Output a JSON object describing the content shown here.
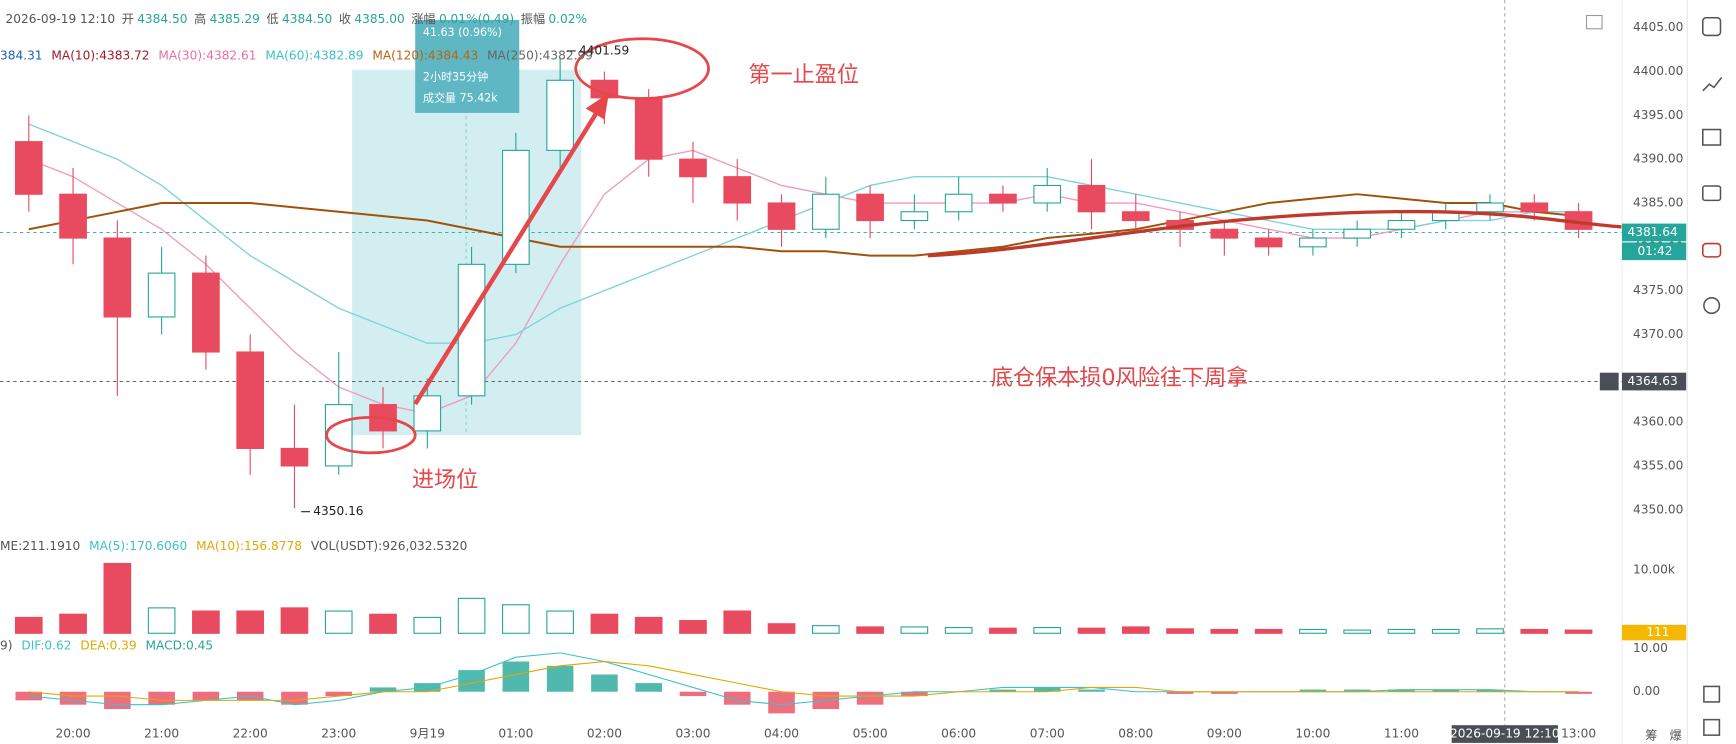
{
  "header": {
    "datetime": "2026-09-19 12:10",
    "fields": [
      {
        "label": "开",
        "value": "4384.50"
      },
      {
        "label": "高",
        "value": "4385.29"
      },
      {
        "label": "低",
        "value": "4384.50"
      },
      {
        "label": "收",
        "value": "4385.00"
      },
      {
        "label": "涨幅",
        "value": "0.01%(0.49)"
      },
      {
        "label": "振幅",
        "value": "0.02%"
      }
    ]
  },
  "chart_data": {
    "type": "candlestick",
    "x": [
      0.5,
      1,
      1.5,
      2,
      2.5,
      3,
      3.5,
      4,
      4.5,
      5,
      5.5,
      6,
      6.5,
      7,
      7.5,
      8,
      8.5,
      9,
      9.5,
      10,
      10.5,
      11,
      11.5,
      12,
      12.5,
      13,
      13.5,
      14,
      14.5,
      15,
      15.5,
      16,
      16.5,
      17,
      17.5,
      18
    ],
    "open": [
      4392,
      4386,
      4381,
      4372,
      4377,
      4368,
      4357,
      4355,
      4362,
      4359,
      4363,
      4378,
      4391,
      4399,
      4397,
      4390,
      4388,
      4385,
      4382,
      4386,
      4383,
      4384,
      4386,
      4385,
      4387,
      4384,
      4383,
      4382,
      4381,
      4380,
      4381,
      4382,
      4383,
      4384,
      4385,
      4384
    ],
    "high": [
      4395,
      4389,
      4383,
      4380,
      4379,
      4370,
      4362,
      4368,
      4364,
      4365,
      4380,
      4393,
      4401.59,
      4400,
      4398,
      4392,
      4390,
      4386,
      4388,
      4387,
      4386,
      4388,
      4387,
      4389,
      4390,
      4386,
      4384,
      4383,
      4382,
      4382,
      4383,
      4384,
      4385,
      4386,
      4386,
      4385
    ],
    "low": [
      4384,
      4378,
      4363,
      4370,
      4366,
      4354,
      4350.16,
      4354,
      4357,
      4357,
      4362,
      4377,
      4389,
      4394,
      4388,
      4385,
      4383,
      4380,
      4381,
      4381,
      4382,
      4383,
      4384,
      4384,
      4382,
      4382,
      4380,
      4379,
      4379,
      4379,
      4380,
      4381,
      4382,
      4383,
      4383,
      4381
    ],
    "close": [
      4386,
      4381,
      4372,
      4377,
      4368,
      4357,
      4355,
      4362,
      4359,
      4363,
      4378,
      4391,
      4399,
      4397,
      4390,
      4388,
      4385,
      4382,
      4386,
      4383,
      4384,
      4386,
      4385,
      4387,
      4384,
      4383,
      4382,
      4381,
      4380,
      4381,
      4382,
      4383,
      4384,
      4385,
      4384,
      4382
    ],
    "up_color": "#26a69a",
    "down_color": "#e84a5f",
    "xlim": [
      0.175,
      18.49
    ],
    "xticks": [
      {
        "value": 1,
        "label": "20:00"
      },
      {
        "value": 2,
        "label": "21:00"
      },
      {
        "value": 3,
        "label": "22:00"
      },
      {
        "value": 4,
        "label": "23:00"
      },
      {
        "value": 5,
        "label": "9月19"
      },
      {
        "value": 6,
        "label": "01:00"
      },
      {
        "value": 7,
        "label": "02:00"
      },
      {
        "value": 8,
        "label": "03:00"
      },
      {
        "value": 9,
        "label": "04:00"
      },
      {
        "value": 10,
        "label": "05:00"
      },
      {
        "value": 11,
        "label": "06:00"
      },
      {
        "value": 12,
        "label": "07:00"
      },
      {
        "value": 13,
        "label": "08:00"
      },
      {
        "value": 14,
        "label": "09:00"
      },
      {
        "value": 15,
        "label": "10:00"
      },
      {
        "value": 16,
        "label": "11:00"
      },
      {
        "value": 18,
        "label": "13:00"
      }
    ],
    "ylim": [
      4347.53,
      4408.16
    ],
    "yticks": [
      {
        "value": 4350,
        "label": "4350.00"
      },
      {
        "value": 4355,
        "label": "4355.00"
      },
      {
        "value": 4360,
        "label": "4360.00"
      },
      {
        "value": 4365,
        "label": "4365.00"
      },
      {
        "value": 4370,
        "label": "4370.00"
      },
      {
        "value": 4375,
        "label": "4375.00"
      },
      {
        "value": 4380,
        "label": "4380.00"
      },
      {
        "value": 4385,
        "label": "4385.00"
      },
      {
        "value": 4390,
        "label": "4390.00"
      },
      {
        "value": 4395,
        "label": "4395.00"
      },
      {
        "value": 4400,
        "label": "4400.00"
      },
      {
        "value": 4405,
        "label": "4405.00"
      }
    ],
    "ma_legend": [
      {
        "text": "384.31",
        "color": "#1e5fb4"
      },
      {
        "text": "MA(10):4383.72",
        "color": "#a01a2a"
      },
      {
        "text": "MA(30):4382.61",
        "color": "#e86fa6"
      },
      {
        "text": "MA(60):4382.89",
        "color": "#3ec1c9"
      },
      {
        "text": "MA(120):4384.43",
        "color": "#b8650e"
      },
      {
        "text": "MA(250):4382.99",
        "color": "#666666"
      }
    ],
    "series": [
      {
        "color": "#f09ac0",
        "values": [
          4390,
          4388,
          4385,
          4382,
          4378,
          4373,
          4368,
          4364,
          4362,
          4361,
          4363,
          4369,
          4378,
          4386,
          4390,
          4391,
          4389,
          4387,
          4386,
          4385,
          4385,
          4385,
          4385,
          4386,
          4385,
          4385,
          4384,
          4383,
          4382,
          4381,
          4381,
          4382,
          4383,
          4384,
          4384,
          4384
        ]
      },
      {
        "color": "#7fd3d8",
        "values": [
          4394,
          4392,
          4390,
          4387,
          4383,
          4379,
          4376,
          4373,
          4371,
          4369,
          4369,
          4370,
          4373,
          4375,
          4377,
          4379,
          4381,
          4383,
          4385,
          4387,
          4388,
          4388,
          4388,
          4388,
          4387,
          4386,
          4385,
          4384,
          4383,
          4382,
          4382,
          4382,
          4383,
          4383,
          4384,
          4384
        ]
      },
      {
        "color": "#a0520c",
        "values": [
          4382,
          4383,
          4384,
          4385,
          4385,
          4385,
          4384.5,
          4384,
          4383.5,
          4383,
          4382,
          4381,
          4380,
          4380,
          4380,
          4380,
          4380,
          4379.5,
          4379.5,
          4379,
          4379,
          4379.5,
          4380,
          4381,
          4381.5,
          4382,
          4383,
          4384,
          4385,
          4385.5,
          4386,
          4385.5,
          4385,
          4385,
          4384,
          4383.5
        ]
      }
    ],
    "extremes": [
      {
        "x": 6.5,
        "value": 4401.59
      },
      {
        "x": 3.5,
        "value": 4350.16
      }
    ],
    "price_lines": [
      {
        "value": 4381.64,
        "label": "4381.64",
        "color": "#26a69a",
        "countdown": "01:42"
      },
      {
        "value": 4364.63,
        "label": "4364.63",
        "color": "#4a4f57"
      }
    ],
    "measure": [
      "41.63 (0.96%)",
      "2小时35分钟",
      "成交量 75.42k"
    ],
    "annotations": [
      "第一止盈位",
      "进场位",
      "底仓保本损0风险往下周拿"
    ],
    "volume": {
      "legend": [
        {
          "text": "ME:211.1910",
          "color": "#555555"
        },
        {
          "text": "MA(5):170.6060",
          "color": "#3ec1c9"
        },
        {
          "text": "MA(10):156.8778",
          "color": "#e0a800"
        },
        {
          "text": "VOL(USDT):926,032.5320",
          "color": "#555555"
        }
      ],
      "values": [
        2500,
        3000,
        11000,
        4000,
        3500,
        3500,
        4000,
        3500,
        3000,
        2500,
        5500,
        4500,
        3500,
        3000,
        2500,
        2000,
        3500,
        1500,
        1200,
        1000,
        1000,
        900,
        800,
        900,
        800,
        1000,
        700,
        600,
        600,
        600,
        500,
        600,
        600,
        700,
        600,
        500
      ],
      "ylim": [
        0,
        15000
      ],
      "yticks": [
        {
          "value": 10000,
          "label": "10.00k"
        }
      ],
      "last_value": 111
    },
    "macd": {
      "legend": [
        {
          "text": "9)",
          "color": "#555555"
        },
        {
          "text": "DIF:0.62",
          "color": "#3ec1c9"
        },
        {
          "text": "DEA:0.39",
          "color": "#e0a800"
        },
        {
          "text": "MACD:0.45",
          "color": "#26a69a"
        }
      ],
      "hist": [
        -2,
        -3,
        -4,
        -3,
        -2,
        -2,
        -3,
        -1,
        1,
        2,
        5,
        7,
        6,
        4,
        2,
        -1,
        -3,
        -5,
        -4,
        -3,
        -1,
        0,
        0.5,
        1,
        0.5,
        0,
        -0.5,
        -0.5,
        0,
        0.5,
        0.5,
        0.5,
        0.5,
        0.5,
        0,
        -0.5
      ],
      "dif": [
        -1,
        -2,
        -3,
        -3,
        -2,
        -1,
        -3,
        -2,
        0,
        1,
        4,
        8,
        9,
        7,
        4,
        1,
        -2,
        -3,
        -2,
        -1,
        0,
        0,
        1,
        1,
        1,
        0,
        0,
        0,
        0,
        0,
        0,
        0.5,
        0.5,
        0.5,
        0,
        0
      ],
      "dea": [
        0,
        -1,
        -1,
        -2,
        -2,
        -2,
        -2,
        -1,
        0,
        0,
        2,
        4,
        6,
        7,
        6,
        4,
        2,
        0,
        -1,
        -1,
        -1,
        0,
        0,
        0,
        1,
        1,
        0,
        0,
        0,
        0,
        0,
        0,
        0,
        0,
        0,
        0
      ],
      "ylim": [
        -8,
        12
      ],
      "yticks": [
        {
          "value": 10,
          "label": "10.00"
        },
        {
          "value": 0,
          "label": "0.00"
        }
      ]
    },
    "crosshair": {
      "x": 17.167,
      "label": "2026-09-19 12:10"
    }
  },
  "footer": [
    "筹",
    "爆"
  ]
}
